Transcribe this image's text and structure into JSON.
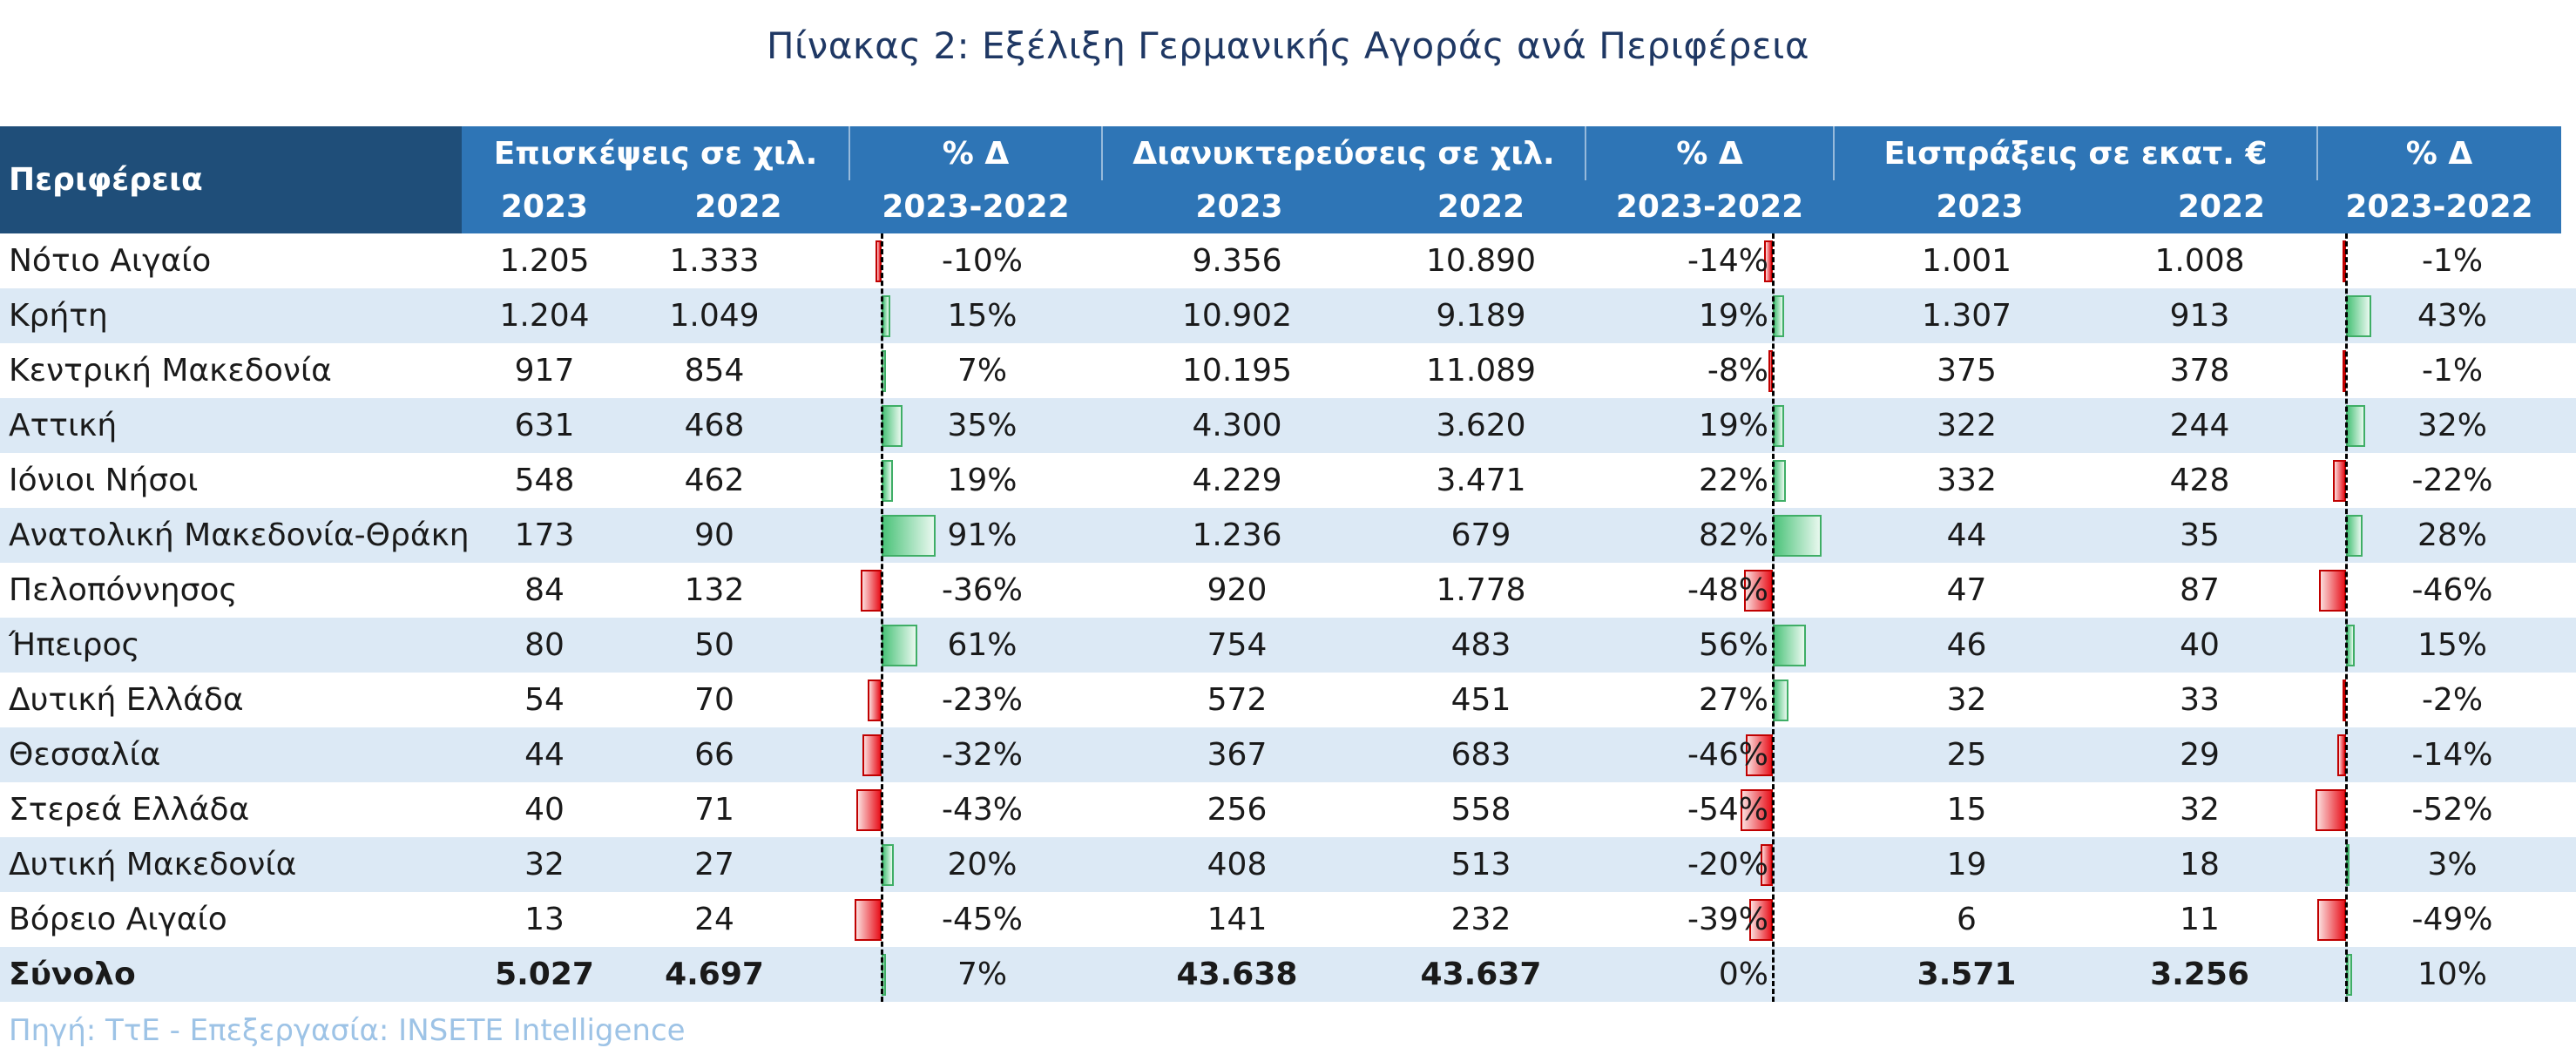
{
  "title": "Πίνακας 2: Εξέλιξη Γερμανικής Αγοράς ανά Περιφέρεια",
  "header": {
    "region": "Περιφέρεια",
    "visits": "Επισκέψεις σε χιλ.",
    "nights": "Διανυκτερεύσεις σε χιλ.",
    "receipts": "Εισπράξεις σε εκατ.  €",
    "pct": "% Δ",
    "year_current": "2023",
    "year_previous": "2022",
    "period": "2023-2022"
  },
  "rows": [
    {
      "region": "Νότιο Αιγαίο",
      "v23": "1.205",
      "v22": "1.333",
      "vp": "-10%",
      "vpn": -10,
      "n23": "9.356",
      "n22": "10.890",
      "np": "-14%",
      "npn": -14,
      "r23": "1.001",
      "r22": "1.008",
      "rp": "-1%",
      "rpn": -1
    },
    {
      "region": "Κρήτη",
      "v23": "1.204",
      "v22": "1.049",
      "vp": "15%",
      "vpn": 15,
      "n23": "10.902",
      "n22": "9.189",
      "np": "19%",
      "npn": 19,
      "r23": "1.307",
      "r22": "913",
      "rp": "43%",
      "rpn": 43
    },
    {
      "region": "Κεντρική Μακεδονία",
      "v23": "917",
      "v22": "854",
      "vp": "7%",
      "vpn": 7,
      "n23": "10.195",
      "n22": "11.089",
      "np": "-8%",
      "npn": -8,
      "r23": "375",
      "r22": "378",
      "rp": "-1%",
      "rpn": -1
    },
    {
      "region": "Αττική",
      "v23": "631",
      "v22": "468",
      "vp": "35%",
      "vpn": 35,
      "n23": "4.300",
      "n22": "3.620",
      "np": "19%",
      "npn": 19,
      "r23": "322",
      "r22": "244",
      "rp": "32%",
      "rpn": 32
    },
    {
      "region": "Ιόνιοι Νήσοι",
      "v23": "548",
      "v22": "462",
      "vp": "19%",
      "vpn": 19,
      "n23": "4.229",
      "n22": "3.471",
      "np": "22%",
      "npn": 22,
      "r23": "332",
      "r22": "428",
      "rp": "-22%",
      "rpn": -22
    },
    {
      "region": "Ανατολική Μακεδονία-Θράκη",
      "v23": "173",
      "v22": "90",
      "vp": "91%",
      "vpn": 91,
      "n23": "1.236",
      "n22": "679",
      "np": "82%",
      "npn": 82,
      "r23": "44",
      "r22": "35",
      "rp": "28%",
      "rpn": 28
    },
    {
      "region": "Πελοπόννησος",
      "v23": "84",
      "v22": "132",
      "vp": "-36%",
      "vpn": -36,
      "n23": "920",
      "n22": "1.778",
      "np": "-48%",
      "npn": -48,
      "r23": "47",
      "r22": "87",
      "rp": "-46%",
      "rpn": -46
    },
    {
      "region": "Ήπειρος",
      "v23": "80",
      "v22": "50",
      "vp": "61%",
      "vpn": 61,
      "n23": "754",
      "n22": "483",
      "np": "56%",
      "npn": 56,
      "r23": "46",
      "r22": "40",
      "rp": "15%",
      "rpn": 15
    },
    {
      "region": "Δυτική Ελλάδα",
      "v23": "54",
      "v22": "70",
      "vp": "-23%",
      "vpn": -23,
      "n23": "572",
      "n22": "451",
      "np": "27%",
      "npn": 27,
      "r23": "32",
      "r22": "33",
      "rp": "-2%",
      "rpn": -2
    },
    {
      "region": "Θεσσαλία",
      "v23": "44",
      "v22": "66",
      "vp": "-32%",
      "vpn": -32,
      "n23": "367",
      "n22": "683",
      "np": "-46%",
      "npn": -46,
      "r23": "25",
      "r22": "29",
      "rp": "-14%",
      "rpn": -14
    },
    {
      "region": "Στερεά Ελλάδα",
      "v23": "40",
      "v22": "71",
      "vp": "-43%",
      "vpn": -43,
      "n23": "256",
      "n22": "558",
      "np": "-54%",
      "npn": -54,
      "r23": "15",
      "r22": "32",
      "rp": "-52%",
      "rpn": -52
    },
    {
      "region": "Δυτική Μακεδονία",
      "v23": "32",
      "v22": "27",
      "vp": "20%",
      "vpn": 20,
      "n23": "408",
      "n22": "513",
      "np": "-20%",
      "npn": -20,
      "r23": "19",
      "r22": "18",
      "rp": "3%",
      "rpn": 3
    },
    {
      "region": "Βόρειο Αιγαίο",
      "v23": "13",
      "v22": "24",
      "vp": "-45%",
      "vpn": -45,
      "n23": "141",
      "n22": "232",
      "np": "-39%",
      "npn": -39,
      "r23": "6",
      "r22": "11",
      "rp": "-49%",
      "rpn": -49
    }
  ],
  "total": {
    "region": "Σύνολο",
    "v23": "5.027",
    "v22": "4.697",
    "vp": "7%",
    "vpn": 7,
    "n23": "43.638",
    "n22": "43.637",
    "np": "0%",
    "npn": 0,
    "r23": "3.571",
    "r22": "3.256",
    "rp": "10%",
    "rpn": 10
  },
  "source": "Πηγή: ΤτΕ - Επεξεργασία: INSETE Intelligence",
  "colors": {
    "header_dark": "#1F4E79",
    "header_blue": "#2E75B6",
    "row_alt": "#DCE9F5",
    "bar_positive": "#4CC37A",
    "bar_negative": "#E8141E"
  }
}
